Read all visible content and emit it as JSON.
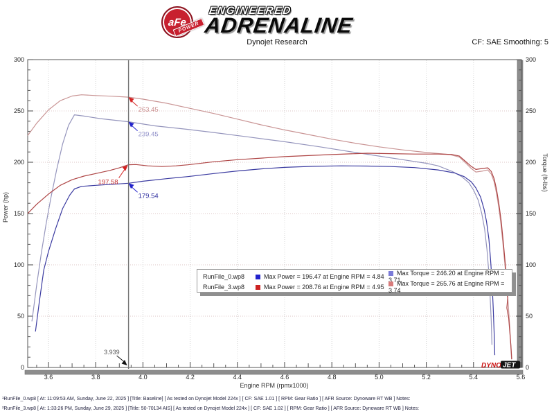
{
  "header": {
    "brand": {
      "circle_text": "aFe",
      "ribbon_text": "POWER",
      "line1": "ENGINEERED",
      "line2": "ADRENALINE"
    },
    "subtitle": "Dynojet Research",
    "smoothing": "CF: SAE Smoothing: 5"
  },
  "chart_data": {
    "type": "line",
    "xlabel": "Engine RPM (rpmx1000)",
    "ylabel_left": "Power (hp)",
    "ylabel_right": "Torque (ft-lbs)",
    "xlim": [
      3.51,
      5.61
    ],
    "ylim": [
      0,
      300
    ],
    "x_ticks": [
      3.6,
      3.8,
      4.0,
      4.2,
      4.4,
      4.6,
      4.8,
      5.0,
      5.2,
      5.4,
      5.6
    ],
    "y_ticks": [
      0,
      50,
      100,
      150,
      200,
      250,
      300
    ],
    "grid": "dotted",
    "cursor": {
      "rpm": 3.939,
      "rpm_label": "3.939",
      "annotations": [
        {
          "label": "263.45",
          "value": 263.45,
          "text_color": "#c98b8b",
          "arrow_color": "#d42222",
          "side": "right"
        },
        {
          "label": "239.45",
          "value": 239.45,
          "text_color": "#9191c9",
          "arrow_color": "#2222cc",
          "side": "right"
        },
        {
          "label": "197.58",
          "value": 197.58,
          "text_color": "#c42c2c",
          "arrow_color": "#d42222",
          "side": "left"
        },
        {
          "label": "179.54",
          "value": 179.54,
          "text_color": "#2b2b9e",
          "arrow_color": "#2222cc",
          "side": "right"
        }
      ]
    },
    "series": [
      {
        "name": "RunFile_3 Torque",
        "color": "#c99494",
        "points": [
          [
            3.512,
            226
          ],
          [
            3.55,
            238
          ],
          [
            3.6,
            251
          ],
          [
            3.65,
            260
          ],
          [
            3.7,
            264.5
          ],
          [
            3.74,
            265.76
          ],
          [
            3.8,
            265
          ],
          [
            3.87,
            264.3
          ],
          [
            3.939,
            263.45
          ],
          [
            4.0,
            261.5
          ],
          [
            4.1,
            257.5
          ],
          [
            4.2,
            252.5
          ],
          [
            4.3,
            247.5
          ],
          [
            4.4,
            242
          ],
          [
            4.5,
            236.5
          ],
          [
            4.6,
            231.5
          ],
          [
            4.7,
            227
          ],
          [
            4.8,
            222.5
          ],
          [
            4.9,
            218.5
          ],
          [
            5.0,
            215
          ],
          [
            5.1,
            212
          ],
          [
            5.2,
            209.5
          ],
          [
            5.3,
            207.5
          ],
          [
            5.34,
            205
          ],
          [
            5.37,
            198.5
          ],
          [
            5.39,
            194
          ],
          [
            5.41,
            190.5
          ],
          [
            5.44,
            191.5
          ],
          [
            5.46,
            192.5
          ],
          [
            5.475,
            188.5
          ],
          [
            5.487,
            181
          ],
          [
            5.497,
            170
          ],
          [
            5.507,
            156
          ],
          [
            5.517,
            138
          ],
          [
            5.527,
            115
          ],
          [
            5.535,
            95
          ],
          [
            5.542,
            78
          ],
          [
            5.548,
            58
          ],
          [
            5.553,
            40
          ],
          [
            5.558,
            20
          ],
          [
            5.561,
            8
          ]
        ]
      },
      {
        "name": "RunFile_0 Torque",
        "color": "#9494bc",
        "points": [
          [
            3.53,
            45
          ],
          [
            3.55,
            80
          ],
          [
            3.57,
            112
          ],
          [
            3.59,
            140
          ],
          [
            3.61,
            165
          ],
          [
            3.635,
            193
          ],
          [
            3.66,
            218
          ],
          [
            3.685,
            236
          ],
          [
            3.71,
            246.2
          ],
          [
            3.75,
            245
          ],
          [
            3.82,
            242.5
          ],
          [
            3.939,
            239.45
          ],
          [
            4.05,
            235.5
          ],
          [
            4.19,
            232
          ],
          [
            4.3,
            229
          ],
          [
            4.45,
            224.5
          ],
          [
            4.6,
            220
          ],
          [
            4.75,
            215
          ],
          [
            4.9,
            209.5
          ],
          [
            5.0,
            206
          ],
          [
            5.1,
            202.5
          ],
          [
            5.2,
            199
          ],
          [
            5.25,
            196.5
          ],
          [
            5.31,
            191
          ],
          [
            5.35,
            186
          ],
          [
            5.38,
            180
          ],
          [
            5.4,
            173
          ],
          [
            5.42,
            163
          ],
          [
            5.435,
            150
          ],
          [
            5.447,
            135
          ],
          [
            5.457,
            115
          ],
          [
            5.464,
            95
          ],
          [
            5.47,
            70
          ],
          [
            5.475,
            45
          ],
          [
            5.478,
            22
          ]
        ]
      },
      {
        "name": "RunFile_3 Power",
        "color": "#ae4444",
        "points": [
          [
            3.512,
            150
          ],
          [
            3.55,
            159
          ],
          [
            3.6,
            169
          ],
          [
            3.65,
            177.5
          ],
          [
            3.7,
            183
          ],
          [
            3.75,
            186.5
          ],
          [
            3.8,
            189
          ],
          [
            3.86,
            192
          ],
          [
            3.9,
            194.5
          ],
          [
            3.939,
            197.58
          ],
          [
            3.97,
            197.8
          ],
          [
            4.02,
            196.5
          ],
          [
            4.08,
            195.8
          ],
          [
            4.14,
            196.5
          ],
          [
            4.19,
            197.5
          ],
          [
            4.3,
            200.5
          ],
          [
            4.4,
            202.5
          ],
          [
            4.5,
            204
          ],
          [
            4.6,
            205.5
          ],
          [
            4.7,
            206.5
          ],
          [
            4.8,
            207.5
          ],
          [
            4.9,
            208.4
          ],
          [
            4.95,
            208.76
          ],
          [
            5.05,
            208.4
          ],
          [
            5.15,
            208
          ],
          [
            5.25,
            208
          ],
          [
            5.31,
            207.5
          ],
          [
            5.34,
            206
          ],
          [
            5.37,
            200
          ],
          [
            5.39,
            196
          ],
          [
            5.41,
            193
          ],
          [
            5.44,
            194
          ],
          [
            5.46,
            194.5
          ],
          [
            5.475,
            191
          ],
          [
            5.487,
            184
          ],
          [
            5.497,
            174
          ],
          [
            5.507,
            160
          ],
          [
            5.517,
            143
          ],
          [
            5.527,
            120
          ],
          [
            5.535,
            100
          ],
          [
            5.541,
            85
          ],
          [
            5.537,
            76
          ],
          [
            5.545,
            68
          ],
          [
            5.541,
            58
          ],
          [
            5.549,
            48
          ],
          [
            5.553,
            36
          ],
          [
            5.558,
            22
          ],
          [
            5.562,
            8
          ]
        ]
      },
      {
        "name": "RunFile_0 Power",
        "color": "#3a3aa0",
        "points": [
          [
            3.545,
            35
          ],
          [
            3.56,
            62
          ],
          [
            3.58,
            95
          ],
          [
            3.6,
            113
          ],
          [
            3.63,
            135
          ],
          [
            3.66,
            155
          ],
          [
            3.69,
            168
          ],
          [
            3.71,
            174
          ],
          [
            3.74,
            176.5
          ],
          [
            3.8,
            177.5
          ],
          [
            3.87,
            178.5
          ],
          [
            3.939,
            179.54
          ],
          [
            4.0,
            181.5
          ],
          [
            4.1,
            184
          ],
          [
            4.19,
            186
          ],
          [
            4.3,
            189
          ],
          [
            4.4,
            191.5
          ],
          [
            4.5,
            193.5
          ],
          [
            4.6,
            195
          ],
          [
            4.72,
            196
          ],
          [
            4.84,
            196.47
          ],
          [
            4.95,
            196.3
          ],
          [
            5.05,
            195.8
          ],
          [
            5.15,
            194.8
          ],
          [
            5.25,
            192.5
          ],
          [
            5.32,
            189.5
          ],
          [
            5.36,
            186
          ],
          [
            5.39,
            181
          ],
          [
            5.41,
            175
          ],
          [
            5.43,
            166
          ],
          [
            5.445,
            154
          ],
          [
            5.455,
            142
          ],
          [
            5.465,
            125
          ],
          [
            5.472,
            105
          ],
          [
            5.478,
            85
          ],
          [
            5.483,
            60
          ],
          [
            5.487,
            35
          ],
          [
            5.49,
            12
          ]
        ]
      }
    ]
  },
  "legend": {
    "rows": [
      {
        "file": "RunFile_0.wp8",
        "power_color": "#2222cc",
        "power_text": "Max Power = 196.47 at Engine RPM = 4.84",
        "torque_color": "#7b7bd8",
        "torque_text": "Max Torque = 246.20 at Engine RPM = 3.71"
      },
      {
        "file": "RunFile_3.wp8",
        "power_color": "#cc2222",
        "power_text": "Max Power = 208.76 at Engine RPM = 4.95",
        "torque_color": "#d87b7b",
        "torque_text": "Max Torque = 265.76 at Engine RPM = 3.74"
      }
    ]
  },
  "watermark": {
    "dyno": "DYNO",
    "jet": "JET"
  },
  "footer": {
    "lines": [
      "¹RunFile_0.wp8 [ At: 11:09:53 AM, Sunday, June 22, 2025 ] [Title: Baseline]  [ As tested on Dynojet Model 224x ] [ CF: SAE 1.01 ] [ RPM: Gear Ratio ] [ AFR Source: Dynoware RT WB ] Notes:",
      "²RunFile_3.wp8 [ At: 1:33:26 PM, Sunday, June 29, 2025 ] [Title: 50-70134 AIS]  [ As tested on Dynojet Model 224x ] [ CF: SAE 1.02 ] [ RPM: Gear Ratio ] [ AFR Source: Dynoware RT WB ] Notes:"
    ]
  }
}
